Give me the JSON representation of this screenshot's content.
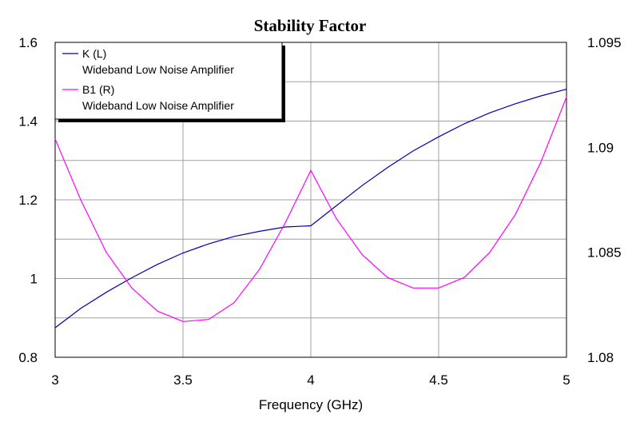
{
  "chart_data": {
    "type": "line",
    "title": "Stability Factor",
    "xlabel": "Frequency (GHz)",
    "xlim": [
      3,
      5
    ],
    "ylim_left": [
      0.8,
      1.6
    ],
    "ylim_right": [
      1.08,
      1.095
    ],
    "x_ticks": [
      3,
      3.5,
      4,
      4.5,
      5
    ],
    "x_tick_labels": [
      "3",
      "3.5",
      "4",
      "4.5",
      "5"
    ],
    "y_left_ticks": [
      0.8,
      1,
      1.2,
      1.4,
      1.6
    ],
    "y_left_tick_labels": [
      "0.8",
      "1",
      "1.2",
      "1.4",
      "1.6"
    ],
    "y_right_ticks": [
      1.08,
      1.085,
      1.09,
      1.095
    ],
    "y_right_tick_labels": [
      "1.08",
      "1.085",
      "1.09",
      "1.095"
    ],
    "x_minor_step": 0.5,
    "y_left_grid_step": 0.1,
    "grid": true,
    "legend_position": "top-left",
    "series": [
      {
        "name": "K (L)",
        "subtitle": "Wideband Low Noise Amplifier",
        "axis": "left",
        "color": "#0000aa",
        "x": [
          3,
          3.1,
          3.2,
          3.3,
          3.4,
          3.5,
          3.6,
          3.7,
          3.8,
          3.9,
          4,
          4.1,
          4.2,
          4.3,
          4.4,
          4.5,
          4.6,
          4.7,
          4.8,
          4.9,
          5
        ],
        "values": [
          0.875,
          0.924,
          0.965,
          1.002,
          1.036,
          1.065,
          1.088,
          1.107,
          1.12,
          1.131,
          1.134,
          1.185,
          1.236,
          1.282,
          1.324,
          1.36,
          1.393,
          1.421,
          1.444,
          1.464,
          1.481
        ]
      },
      {
        "name": "B1 (R)",
        "subtitle": "Wideband Low Noise Amplifier",
        "axis": "right",
        "color": "#ff00ff",
        "x": [
          3,
          3.1,
          3.2,
          3.3,
          3.4,
          3.5,
          3.6,
          3.7,
          3.8,
          3.9,
          4,
          4.1,
          4.2,
          4.3,
          4.4,
          4.5,
          4.6,
          4.7,
          4.8,
          4.9,
          5
        ],
        "values": [
          1.0904,
          1.0875,
          1.085,
          1.0833,
          1.0822,
          1.0817,
          1.0818,
          1.0826,
          1.0842,
          1.0864,
          1.0889,
          1.0866,
          1.0849,
          1.0838,
          1.0833,
          1.0833,
          1.0838,
          1.085,
          1.0868,
          1.0893,
          1.0924
        ]
      }
    ]
  }
}
